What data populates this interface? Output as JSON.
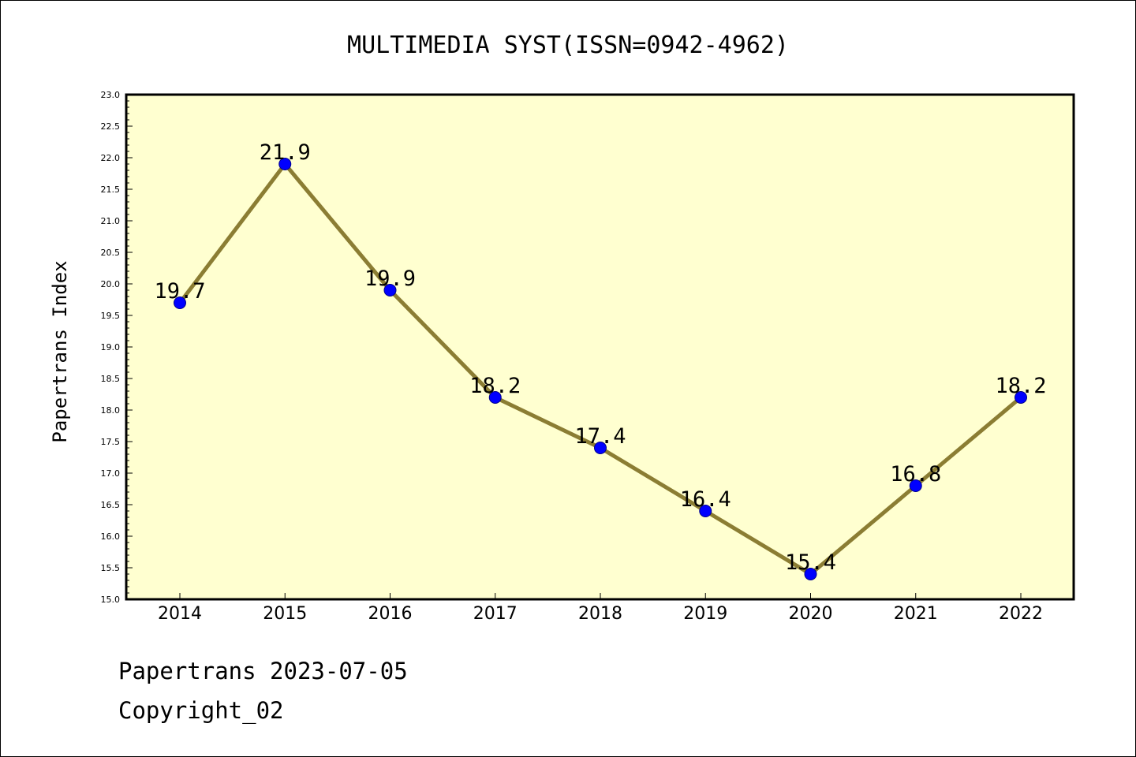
{
  "footer": {
    "line1": "Papertrans 2023-07-05",
    "line2": "Copyright_02"
  },
  "chart_data": {
    "type": "line",
    "title": "MULTIMEDIA SYST(ISSN=0942-4962)",
    "xlabel": "",
    "ylabel": "Papertrans Index",
    "categories": [
      "2014",
      "2015",
      "2016",
      "2017",
      "2018",
      "2019",
      "2020",
      "2021",
      "2022"
    ],
    "values": [
      19.7,
      21.9,
      19.9,
      18.2,
      17.4,
      16.4,
      15.4,
      16.8,
      18.2
    ],
    "data_labels": [
      "19.7",
      "21.9",
      "19.9",
      "18.2",
      "17.4",
      "16.4",
      "15.4",
      "16.8",
      "18.2"
    ],
    "ylim": [
      15.0,
      23.0
    ],
    "yticks": [
      "15.0",
      "15.5",
      "16.0",
      "16.5",
      "17.0",
      "17.5",
      "18.0",
      "18.5",
      "19.0",
      "19.5",
      "20.0",
      "20.5",
      "21.0",
      "21.5",
      "22.0",
      "22.5",
      "23.0"
    ],
    "grid": false,
    "colors": {
      "plot_background": "#ffffd0",
      "line": "#8b7d33",
      "marker": "#0000ff",
      "marker_edge": "#00008b"
    }
  }
}
